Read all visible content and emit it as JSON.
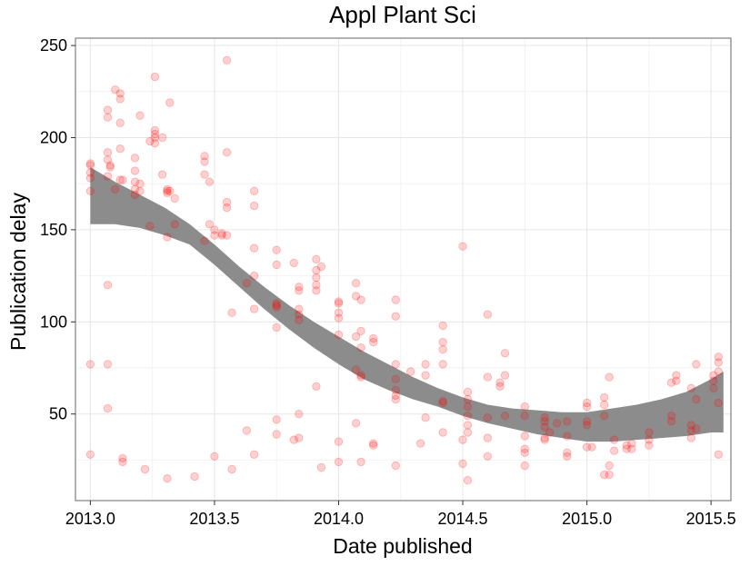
{
  "chart_data": {
    "type": "scatter",
    "title": "Appl Plant Sci",
    "xlabel": "Date published",
    "ylabel": "Publication delay",
    "xlim": [
      2012.94,
      2015.58
    ],
    "ylim": [
      3,
      254
    ],
    "x_ticks": [
      2013.0,
      2013.5,
      2014.0,
      2014.5,
      2015.0,
      2015.5
    ],
    "x_tick_labels": [
      "2013.0",
      "2013.5",
      "2014.0",
      "2014.5",
      "2015.0",
      "2015.5"
    ],
    "y_ticks": [
      50,
      100,
      150,
      200,
      250
    ],
    "y_tick_labels": [
      "50",
      "100",
      "150",
      "200",
      "250"
    ],
    "grid": true,
    "legend": "none",
    "point_color": "#ff0000",
    "point_opacity": 0.18,
    "smooth_fill_color": "#8c8c8c",
    "points": [
      [
        2013.0,
        185
      ],
      [
        2013.0,
        186
      ],
      [
        2013.0,
        178
      ],
      [
        2013.0,
        171
      ],
      [
        2013.0,
        181
      ],
      [
        2013.0,
        77
      ],
      [
        2013.0,
        28
      ],
      [
        2013.07,
        215
      ],
      [
        2013.07,
        211
      ],
      [
        2013.07,
        192
      ],
      [
        2013.07,
        188
      ],
      [
        2013.07,
        179
      ],
      [
        2013.07,
        120
      ],
      [
        2013.07,
        77
      ],
      [
        2013.07,
        53
      ],
      [
        2013.08,
        185
      ],
      [
        2013.08,
        184
      ],
      [
        2013.1,
        226
      ],
      [
        2013.1,
        172
      ],
      [
        2013.12,
        224
      ],
      [
        2013.12,
        221
      ],
      [
        2013.12,
        208
      ],
      [
        2013.12,
        194
      ],
      [
        2013.12,
        177
      ],
      [
        2013.13,
        177
      ],
      [
        2013.13,
        26
      ],
      [
        2013.13,
        24
      ],
      [
        2013.18,
        189
      ],
      [
        2013.18,
        182
      ],
      [
        2013.18,
        176
      ],
      [
        2013.18,
        172
      ],
      [
        2013.18,
        169
      ],
      [
        2013.2,
        212
      ],
      [
        2013.2,
        175
      ],
      [
        2013.2,
        171
      ],
      [
        2013.22,
        20
      ],
      [
        2013.24,
        198
      ],
      [
        2013.24,
        152
      ],
      [
        2013.26,
        233
      ],
      [
        2013.26,
        204
      ],
      [
        2013.26,
        202
      ],
      [
        2013.26,
        200
      ],
      [
        2013.26,
        197
      ],
      [
        2013.29,
        200
      ],
      [
        2013.29,
        180
      ],
      [
        2013.31,
        172
      ],
      [
        2013.31,
        171
      ],
      [
        2013.31,
        170
      ],
      [
        2013.31,
        146
      ],
      [
        2013.31,
        15
      ],
      [
        2013.32,
        219
      ],
      [
        2013.32,
        171
      ],
      [
        2013.34,
        167
      ],
      [
        2013.34,
        153
      ],
      [
        2013.42,
        16
      ],
      [
        2013.46,
        190
      ],
      [
        2013.46,
        187
      ],
      [
        2013.46,
        180
      ],
      [
        2013.46,
        144
      ],
      [
        2013.48,
        176
      ],
      [
        2013.48,
        153
      ],
      [
        2013.5,
        150
      ],
      [
        2013.5,
        147
      ],
      [
        2013.5,
        27
      ],
      [
        2013.53,
        148
      ],
      [
        2013.53,
        147
      ],
      [
        2013.55,
        242
      ],
      [
        2013.55,
        192
      ],
      [
        2013.55,
        165
      ],
      [
        2013.55,
        162
      ],
      [
        2013.55,
        147
      ],
      [
        2013.57,
        105
      ],
      [
        2013.57,
        20
      ],
      [
        2013.63,
        121
      ],
      [
        2013.63,
        41
      ],
      [
        2013.66,
        171
      ],
      [
        2013.66,
        163
      ],
      [
        2013.66,
        140
      ],
      [
        2013.66,
        125
      ],
      [
        2013.66,
        107
      ],
      [
        2013.66,
        28
      ],
      [
        2013.75,
        139
      ],
      [
        2013.75,
        131
      ],
      [
        2013.75,
        110
      ],
      [
        2013.75,
        109
      ],
      [
        2013.75,
        108
      ],
      [
        2013.75,
        97
      ],
      [
        2013.75,
        47
      ],
      [
        2013.75,
        39
      ],
      [
        2013.82,
        132
      ],
      [
        2013.82,
        36
      ],
      [
        2013.84,
        119
      ],
      [
        2013.84,
        117
      ],
      [
        2013.84,
        107
      ],
      [
        2013.84,
        104
      ],
      [
        2013.84,
        101
      ],
      [
        2013.84,
        50
      ],
      [
        2013.84,
        37
      ],
      [
        2013.91,
        134
      ],
      [
        2013.91,
        128
      ],
      [
        2013.91,
        124
      ],
      [
        2013.91,
        120
      ],
      [
        2013.91,
        117
      ],
      [
        2013.91,
        65
      ],
      [
        2013.93,
        130
      ],
      [
        2013.93,
        21
      ],
      [
        2014.0,
        111
      ],
      [
        2014.0,
        110
      ],
      [
        2014.0,
        105
      ],
      [
        2014.0,
        102
      ],
      [
        2014.0,
        93
      ],
      [
        2014.0,
        35
      ],
      [
        2014.0,
        24
      ],
      [
        2014.07,
        121
      ],
      [
        2014.07,
        114
      ],
      [
        2014.07,
        92
      ],
      [
        2014.07,
        74
      ],
      [
        2014.07,
        45
      ],
      [
        2014.09,
        112
      ],
      [
        2014.09,
        95
      ],
      [
        2014.09,
        86
      ],
      [
        2014.09,
        71
      ],
      [
        2014.09,
        70
      ],
      [
        2014.09,
        24
      ],
      [
        2014.14,
        91
      ],
      [
        2014.14,
        89
      ],
      [
        2014.14,
        34
      ],
      [
        2014.14,
        33
      ],
      [
        2014.23,
        112
      ],
      [
        2014.23,
        103
      ],
      [
        2014.23,
        77
      ],
      [
        2014.23,
        69
      ],
      [
        2014.23,
        63
      ],
      [
        2014.23,
        60
      ],
      [
        2014.23,
        58
      ],
      [
        2014.23,
        22
      ],
      [
        2014.29,
        73
      ],
      [
        2014.33,
        34
      ],
      [
        2014.35,
        77
      ],
      [
        2014.35,
        71
      ],
      [
        2014.35,
        48
      ],
      [
        2014.42,
        98
      ],
      [
        2014.42,
        89
      ],
      [
        2014.42,
        85
      ],
      [
        2014.42,
        77
      ],
      [
        2014.42,
        57
      ],
      [
        2014.42,
        56
      ],
      [
        2014.42,
        40
      ],
      [
        2014.5,
        141
      ],
      [
        2014.5,
        36
      ],
      [
        2014.5,
        23
      ],
      [
        2014.52,
        62
      ],
      [
        2014.52,
        58
      ],
      [
        2014.52,
        54
      ],
      [
        2014.52,
        49
      ],
      [
        2014.52,
        44
      ],
      [
        2014.52,
        40
      ],
      [
        2014.52,
        14
      ],
      [
        2014.6,
        104
      ],
      [
        2014.6,
        70
      ],
      [
        2014.6,
        48
      ],
      [
        2014.6,
        37
      ],
      [
        2014.6,
        27
      ],
      [
        2014.65,
        67
      ],
      [
        2014.65,
        65
      ],
      [
        2014.67,
        83
      ],
      [
        2014.67,
        71
      ],
      [
        2014.67,
        49
      ],
      [
        2014.75,
        54
      ],
      [
        2014.75,
        49
      ],
      [
        2014.75,
        38
      ],
      [
        2014.75,
        31
      ],
      [
        2014.75,
        29
      ],
      [
        2014.75,
        22
      ],
      [
        2014.83,
        48
      ],
      [
        2014.83,
        46
      ],
      [
        2014.83,
        43
      ],
      [
        2014.83,
        37
      ],
      [
        2014.83,
        36
      ],
      [
        2014.85,
        40
      ],
      [
        2014.88,
        45
      ],
      [
        2014.92,
        46
      ],
      [
        2014.92,
        38
      ],
      [
        2014.92,
        29
      ],
      [
        2014.92,
        27
      ],
      [
        2015.0,
        56
      ],
      [
        2015.0,
        54
      ],
      [
        2015.0,
        46
      ],
      [
        2015.0,
        44
      ],
      [
        2015.0,
        32
      ],
      [
        2015.02,
        32
      ],
      [
        2015.07,
        59
      ],
      [
        2015.07,
        55
      ],
      [
        2015.07,
        49
      ],
      [
        2015.07,
        17
      ],
      [
        2015.09,
        70
      ],
      [
        2015.09,
        22
      ],
      [
        2015.09,
        17
      ],
      [
        2015.11,
        36
      ],
      [
        2015.11,
        30
      ],
      [
        2015.16,
        33
      ],
      [
        2015.16,
        31
      ],
      [
        2015.18,
        34
      ],
      [
        2015.18,
        31
      ],
      [
        2015.25,
        40
      ],
      [
        2015.25,
        36
      ],
      [
        2015.25,
        33
      ],
      [
        2015.34,
        67
      ],
      [
        2015.34,
        49
      ],
      [
        2015.34,
        46
      ],
      [
        2015.36,
        71
      ],
      [
        2015.36,
        68
      ],
      [
        2015.42,
        64
      ],
      [
        2015.42,
        44
      ],
      [
        2015.42,
        41
      ],
      [
        2015.42,
        37
      ],
      [
        2015.44,
        77
      ],
      [
        2015.44,
        58
      ],
      [
        2015.44,
        42
      ],
      [
        2015.51,
        71
      ],
      [
        2015.51,
        68
      ],
      [
        2015.51,
        64
      ],
      [
        2015.53,
        81
      ],
      [
        2015.53,
        78
      ],
      [
        2015.53,
        73
      ],
      [
        2015.53,
        56
      ],
      [
        2015.53,
        28
      ]
    ],
    "smooth_band": {
      "x": [
        2013.0,
        2013.1,
        2013.2,
        2013.3,
        2013.4,
        2013.5,
        2013.6,
        2013.7,
        2013.8,
        2013.9,
        2014.0,
        2014.1,
        2014.2,
        2014.3,
        2014.4,
        2014.5,
        2014.6,
        2014.7,
        2014.8,
        2014.9,
        2015.0,
        2015.1,
        2015.2,
        2015.3,
        2015.4,
        2015.5,
        2015.55
      ],
      "upper": [
        184,
        176,
        169,
        162,
        153,
        142,
        130,
        119,
        109,
        100,
        92,
        84,
        77,
        70,
        64,
        59,
        55,
        53,
        52,
        51,
        51,
        53,
        55,
        58,
        62,
        69,
        73
      ],
      "lower": [
        153,
        153,
        151,
        147,
        142,
        131,
        119,
        107,
        96,
        86,
        77,
        69,
        63,
        58,
        54,
        49,
        45,
        42,
        39,
        37,
        35,
        35,
        36,
        37,
        38,
        40,
        40
      ]
    }
  }
}
